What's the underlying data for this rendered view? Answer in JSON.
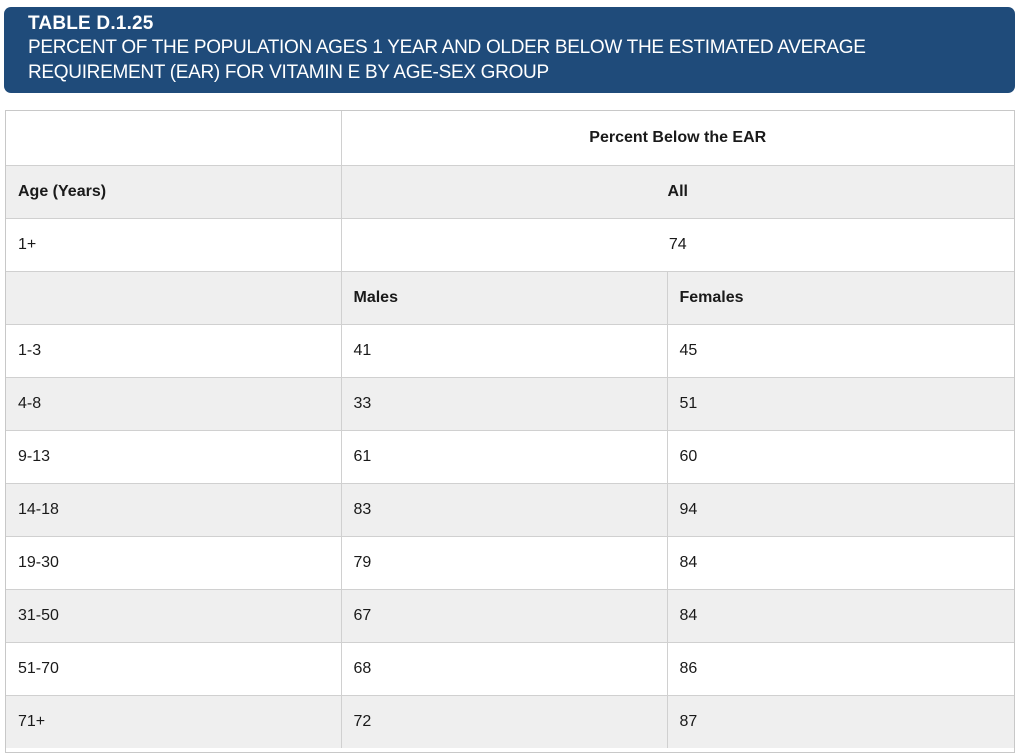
{
  "title": {
    "id": "TABLE D.1.25",
    "line1": "PERCENT OF THE POPULATION AGES 1 YEAR AND OLDER BELOW THE ESTIMATED AVERAGE",
    "line2": "REQUIREMENT (EAR) FOR VITAMIN E BY AGE-SEX GROUP"
  },
  "table": {
    "top_header": "Percent Below the EAR",
    "age_header": "Age (Years)",
    "all_header": "All",
    "all_row": {
      "age": "1+",
      "value": "74"
    },
    "males_header": "Males",
    "females_header": "Females",
    "rows": [
      {
        "age": "1-3",
        "males": "41",
        "females": "45"
      },
      {
        "age": "4-8",
        "males": "33",
        "females": "51"
      },
      {
        "age": "9-13",
        "males": "61",
        "females": "60"
      },
      {
        "age": "14-18",
        "males": "83",
        "females": "94"
      },
      {
        "age": "19-30",
        "males": "79",
        "females": "84"
      },
      {
        "age": "31-50",
        "males": "67",
        "females": "84"
      },
      {
        "age": "51-70",
        "males": "68",
        "females": "86"
      },
      {
        "age": "71+",
        "males": "72",
        "females": "87"
      }
    ]
  },
  "colors": {
    "banner": "#1f4b7a",
    "row_shade": "#efefef",
    "grid": "#d0d0d0"
  }
}
